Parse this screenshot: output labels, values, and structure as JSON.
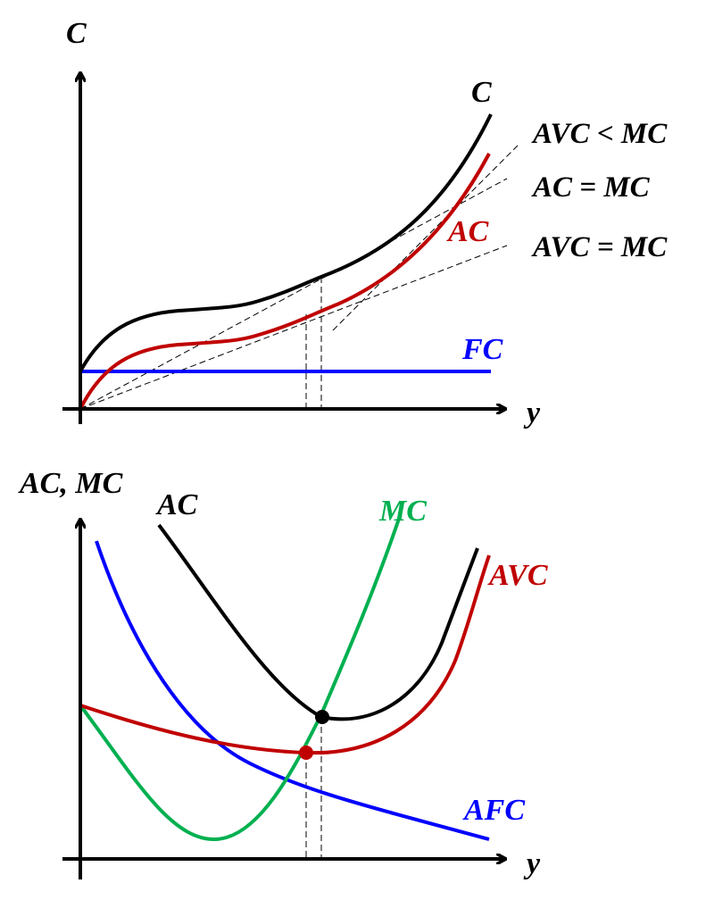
{
  "colors": {
    "axis": "#000000",
    "total_cost": "#000000",
    "variable_cost": "#c00000",
    "fixed_cost": "#0000ff",
    "marginal_cost": "#00b050",
    "guide": "#000000"
  },
  "top_panel": {
    "y_axis_label": "C",
    "x_axis_label": "y",
    "curve_labels": {
      "total_cost": "C",
      "variable_cost": "AC",
      "fixed_cost": "FC"
    },
    "ray_labels": {
      "avc_lt_mc": "AVC < MC",
      "ac_eq_mc": "AC = MC",
      "avc_eq_mc": "AVC = MC"
    }
  },
  "bottom_panel": {
    "y_axis_label": "AC, MC",
    "x_axis_label": "y",
    "curve_labels": {
      "average_cost": "AC",
      "marginal_cost": "MC",
      "average_variable_cost": "AVC",
      "average_fixed_cost": "AFC"
    }
  }
}
